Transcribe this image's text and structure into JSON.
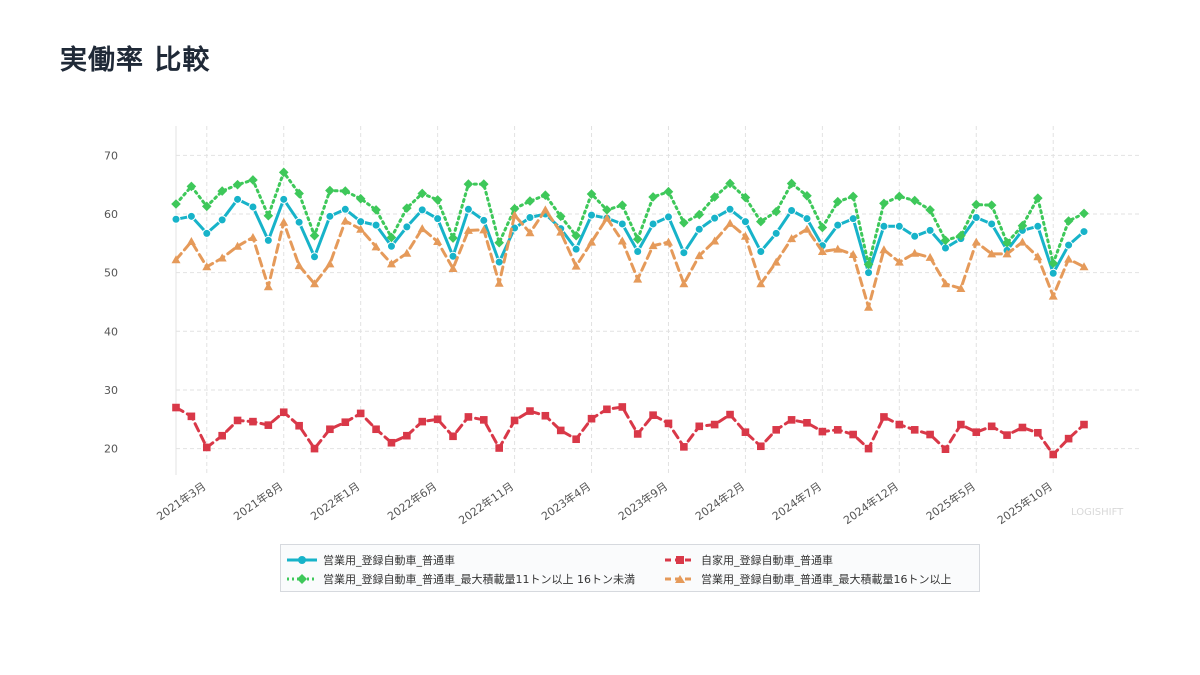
{
  "page": {
    "title": "実働率 比較",
    "watermark": "LOGISHIFT"
  },
  "colors": {
    "s1": "#17b3c9",
    "s2": "#d93848",
    "s3": "#3ec85a",
    "s4": "#e59a5a"
  },
  "chart_data": {
    "type": "line",
    "title": "実働率 比較",
    "xlabel": "",
    "ylabel": "",
    "ylim": [
      15.5,
      75
    ],
    "yticks": [
      20,
      30,
      40,
      50,
      60,
      70
    ],
    "grid": true,
    "legend_position": "bottom",
    "x": [
      "2021年1月",
      "2021年2月",
      "2021年3月",
      "2021年4月",
      "2021年5月",
      "2021年6月",
      "2021年7月",
      "2021年8月",
      "2021年9月",
      "2021年10月",
      "2021年11月",
      "2021年12月",
      "2022年1月",
      "2022年2月",
      "2022年3月",
      "2022年4月",
      "2022年5月",
      "2022年6月",
      "2022年7月",
      "2022年8月",
      "2022年9月",
      "2022年10月",
      "2022年11月",
      "2022年12月",
      "2023年1月",
      "2023年2月",
      "2023年3月",
      "2023年4月",
      "2023年5月",
      "2023年6月",
      "2023年7月",
      "2023年8月",
      "2023年9月",
      "2023年10月",
      "2023年11月",
      "2023年12月",
      "2024年1月",
      "2024年2月",
      "2024年3月",
      "2024年4月",
      "2024年5月",
      "2024年6月",
      "2024年7月",
      "2024年8月",
      "2024年9月",
      "2024年10月",
      "2024年11月",
      "2024年12月",
      "2025年1月",
      "2025年2月",
      "2025年3月",
      "2025年4月",
      "2025年5月",
      "2025年6月",
      "2025年7月",
      "2025年8月",
      "2025年9月",
      "2025年10月",
      "2025年11月",
      "2025年12月"
    ],
    "x_ticks": [
      "2021年3月",
      "2021年8月",
      "2022年1月",
      "2022年6月",
      "2022年11月",
      "2023年4月",
      "2023年9月",
      "2024年2月",
      "2024年7月",
      "2024年12月",
      "2025年5月",
      "2025年10月"
    ],
    "series": [
      {
        "name": "営業用_登録自動車_普通車",
        "key": "s1",
        "style": "solid",
        "marker": "circle",
        "values": [
          59.1,
          59.6,
          56.7,
          59.0,
          62.5,
          61.2,
          55.5,
          62.5,
          58.6,
          52.7,
          59.6,
          60.8,
          58.7,
          58.1,
          54.5,
          57.8,
          60.7,
          59.2,
          52.8,
          60.8,
          58.9,
          51.8,
          57.6,
          59.4,
          60.0,
          57.5,
          54.0,
          59.8,
          59.3,
          58.3,
          53.6,
          58.3,
          59.5,
          53.4,
          57.4,
          59.3,
          60.8,
          58.7,
          53.6,
          56.7,
          60.6,
          59.2,
          54.6,
          58.1,
          59.2,
          50.0,
          57.9,
          57.9,
          56.2,
          57.2,
          54.2,
          55.8,
          59.4,
          58.3,
          53.8,
          57.2,
          57.9,
          49.9,
          54.7,
          57.0
        ]
      },
      {
        "name": "自家用_登録自動車_普通車",
        "key": "s2",
        "style": "dashed",
        "marker": "square",
        "values": [
          27.0,
          25.5,
          20.2,
          22.2,
          24.8,
          24.6,
          24.0,
          26.2,
          23.9,
          20.0,
          23.3,
          24.5,
          26.0,
          23.3,
          21.0,
          22.2,
          24.6,
          25.0,
          22.1,
          25.4,
          24.9,
          20.1,
          24.8,
          26.4,
          25.6,
          23.1,
          21.6,
          25.1,
          26.7,
          27.1,
          22.5,
          25.7,
          24.3,
          20.3,
          23.8,
          24.1,
          25.8,
          22.8,
          20.4,
          23.2,
          24.9,
          24.4,
          22.9,
          23.2,
          22.4,
          20.0,
          25.4,
          24.1,
          23.2,
          22.4,
          19.9,
          24.1,
          22.8,
          23.8,
          22.3,
          23.6,
          22.7,
          19.0,
          21.7,
          24.1
        ]
      },
      {
        "name": "営業用_登録自動車_普通車_最大積載量11トン以上 16トン未満",
        "key": "s3",
        "style": "dotted",
        "marker": "diamond",
        "values": [
          61.7,
          64.7,
          61.3,
          63.9,
          65.0,
          65.8,
          59.7,
          67.1,
          63.5,
          56.3,
          64.0,
          63.9,
          62.6,
          60.7,
          56.0,
          61.0,
          63.5,
          62.4,
          55.9,
          65.1,
          65.1,
          55.1,
          60.9,
          62.2,
          63.2,
          59.6,
          56.3,
          63.4,
          60.7,
          61.5,
          55.7,
          62.9,
          63.8,
          58.5,
          59.9,
          62.9,
          65.2,
          62.8,
          58.7,
          60.4,
          65.2,
          63.1,
          57.7,
          62.1,
          63.0,
          51.4,
          61.8,
          63.0,
          62.3,
          60.7,
          55.5,
          56.3,
          61.6,
          61.5,
          55.1,
          58.0,
          62.7,
          51.6,
          58.8,
          60.1
        ]
      },
      {
        "name": "営業用_登録自動車_普通車_最大積載量16トン以上",
        "key": "s4",
        "style": "dashed",
        "marker": "triangle",
        "values": [
          52.2,
          55.3,
          51.0,
          52.5,
          54.5,
          56.0,
          47.6,
          58.6,
          51.2,
          48.1,
          51.5,
          58.8,
          57.4,
          54.4,
          51.5,
          53.3,
          57.5,
          55.3,
          50.7,
          57.2,
          57.3,
          48.2,
          59.8,
          56.8,
          60.7,
          56.9,
          51.1,
          55.2,
          59.3,
          55.4,
          48.9,
          54.6,
          55.2,
          48.1,
          52.9,
          55.4,
          58.4,
          56.2,
          48.1,
          51.8,
          55.8,
          57.4,
          53.6,
          54.0,
          53.1,
          44.1,
          53.9,
          51.8,
          53.3,
          52.6,
          48.1,
          47.3,
          55.2,
          53.2,
          53.2,
          55.2,
          52.7,
          46.0,
          52.3,
          51.0
        ]
      }
    ]
  }
}
